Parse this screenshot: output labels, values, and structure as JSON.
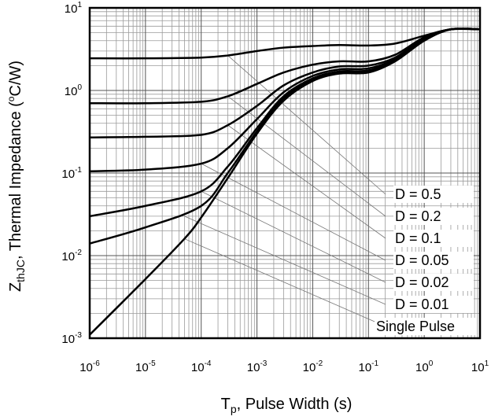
{
  "chart_data": {
    "type": "line",
    "title": "",
    "x_scale": "log",
    "y_scale": "log",
    "xlim": [
      1e-06,
      10
    ],
    "ylim": [
      0.001,
      10
    ],
    "grid": true,
    "legend_position": "bottom-right",
    "xlabel": {
      "main": "T",
      "sub": "p",
      "rest": ", Pulse Width (s)"
    },
    "ylabel": {
      "main": "Z",
      "sub": "thJC",
      "rest1": ", Thermal Impedance (",
      "sup": "o",
      "rest2": "C/W)"
    },
    "x_ticks": [
      {
        "base": "10",
        "exp": "-6"
      },
      {
        "base": "10",
        "exp": "-5"
      },
      {
        "base": "10",
        "exp": "-4"
      },
      {
        "base": "10",
        "exp": "-3"
      },
      {
        "base": "10",
        "exp": "-2"
      },
      {
        "base": "10",
        "exp": "-1"
      },
      {
        "base": "10",
        "exp": "0"
      },
      {
        "base": "10",
        "exp": "1"
      }
    ],
    "y_ticks": [
      {
        "base": "10",
        "exp": "1"
      },
      {
        "base": "10",
        "exp": "0"
      },
      {
        "base": "10",
        "exp": "-1"
      },
      {
        "base": "10",
        "exp": "-2"
      },
      {
        "base": "10",
        "exp": "-3"
      }
    ],
    "legend": [
      "D = 0.5",
      "D = 0.2",
      "D = 0.1",
      "D = 0.05",
      "D = 0.02",
      "D = 0.01",
      "Single Pulse"
    ],
    "series": [
      {
        "name": "D = 0.5",
        "points": [
          [
            1e-06,
            2.45
          ],
          [
            1e-05,
            2.45
          ],
          [
            0.0001,
            2.5
          ],
          [
            0.0003,
            2.65
          ],
          [
            0.001,
            3.0
          ],
          [
            0.003,
            3.3
          ],
          [
            0.01,
            3.45
          ],
          [
            0.03,
            3.55
          ],
          [
            0.1,
            3.5
          ],
          [
            0.3,
            3.7
          ],
          [
            1,
            4.6
          ],
          [
            3,
            5.5
          ],
          [
            10,
            5.5
          ]
        ]
      },
      {
        "name": "D = 0.2",
        "points": [
          [
            1e-06,
            0.7
          ],
          [
            1e-05,
            0.7
          ],
          [
            0.0001,
            0.73
          ],
          [
            0.0003,
            0.85
          ],
          [
            0.001,
            1.2
          ],
          [
            0.003,
            1.65
          ],
          [
            0.01,
            2.05
          ],
          [
            0.03,
            2.25
          ],
          [
            0.1,
            2.25
          ],
          [
            0.3,
            2.7
          ],
          [
            1,
            4.4
          ],
          [
            3,
            5.5
          ],
          [
            10,
            5.5
          ]
        ]
      },
      {
        "name": "D = 0.1",
        "points": [
          [
            1e-06,
            0.27
          ],
          [
            1e-05,
            0.275
          ],
          [
            0.0001,
            0.29
          ],
          [
            0.0003,
            0.38
          ],
          [
            0.001,
            0.65
          ],
          [
            0.003,
            1.15
          ],
          [
            0.01,
            1.65
          ],
          [
            0.03,
            1.95
          ],
          [
            0.1,
            2.0
          ],
          [
            0.3,
            2.5
          ],
          [
            1,
            4.3
          ],
          [
            3,
            5.5
          ],
          [
            10,
            5.5
          ]
        ]
      },
      {
        "name": "D = 0.05",
        "points": [
          [
            1e-06,
            0.105
          ],
          [
            1e-05,
            0.11
          ],
          [
            0.0001,
            0.13
          ],
          [
            0.0003,
            0.2
          ],
          [
            0.001,
            0.45
          ],
          [
            0.003,
            0.95
          ],
          [
            0.01,
            1.5
          ],
          [
            0.03,
            1.8
          ],
          [
            0.1,
            1.85
          ],
          [
            0.3,
            2.4
          ],
          [
            1,
            4.2
          ],
          [
            3,
            5.5
          ],
          [
            10,
            5.5
          ]
        ]
      },
      {
        "name": "D = 0.02",
        "points": [
          [
            1e-06,
            0.03
          ],
          [
            1e-05,
            0.04
          ],
          [
            0.0001,
            0.06
          ],
          [
            0.0003,
            0.12
          ],
          [
            0.001,
            0.35
          ],
          [
            0.003,
            0.85
          ],
          [
            0.01,
            1.4
          ],
          [
            0.03,
            1.7
          ],
          [
            0.1,
            1.75
          ],
          [
            0.3,
            2.35
          ],
          [
            1,
            4.15
          ],
          [
            3,
            5.5
          ],
          [
            10,
            5.5
          ]
        ]
      },
      {
        "name": "D = 0.01",
        "points": [
          [
            1e-06,
            0.014
          ],
          [
            1e-05,
            0.022
          ],
          [
            0.0001,
            0.04
          ],
          [
            0.0003,
            0.1
          ],
          [
            0.001,
            0.32
          ],
          [
            0.003,
            0.8
          ],
          [
            0.01,
            1.35
          ],
          [
            0.03,
            1.65
          ],
          [
            0.1,
            1.7
          ],
          [
            0.3,
            2.3
          ],
          [
            1,
            4.1
          ],
          [
            3,
            5.5
          ],
          [
            10,
            5.5
          ]
        ]
      },
      {
        "name": "Single Pulse",
        "points": [
          [
            1e-06,
            0.0011
          ],
          [
            1e-05,
            0.0052
          ],
          [
            5e-05,
            0.016
          ],
          [
            0.0001,
            0.029
          ],
          [
            0.0003,
            0.087
          ],
          [
            0.001,
            0.3
          ],
          [
            0.003,
            0.75
          ],
          [
            0.01,
            1.3
          ],
          [
            0.03,
            1.6
          ],
          [
            0.1,
            1.65
          ],
          [
            0.3,
            2.25
          ],
          [
            1,
            4.0
          ],
          [
            3,
            5.5
          ],
          [
            10,
            5.5
          ]
        ]
      }
    ]
  }
}
